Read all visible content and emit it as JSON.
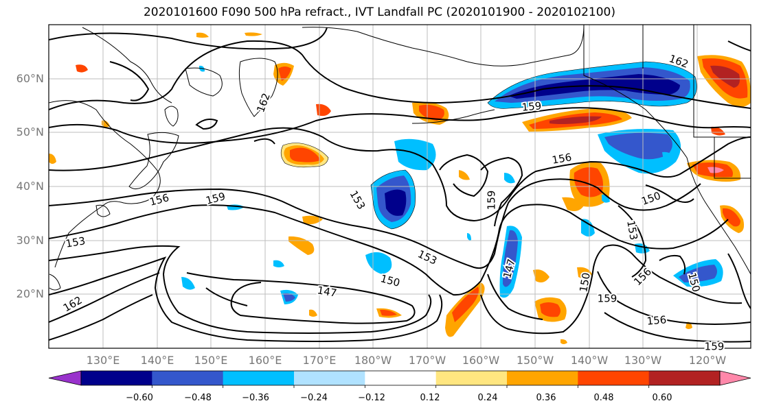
{
  "title": "2020101600 F090 500 hPa refract., IVT Landfall PC (2020101900 - 2020102100)",
  "lat_labels": [
    "60°N",
    "50°N",
    "40°N",
    "30°N",
    "20°N"
  ],
  "lon_labels": [
    "130°E",
    "140°E",
    "150°E",
    "160°E",
    "170°E",
    "180°W",
    "170°W",
    "160°W",
    "150°W",
    "140°W",
    "130°W",
    "120°W"
  ],
  "contour_labels": [
    "162",
    "159",
    "156",
    "159",
    "153",
    "159",
    "156",
    "153",
    "150",
    "153",
    "147",
    "150",
    "153",
    "162",
    "147",
    "150",
    "159",
    "156",
    "150",
    "162",
    "156",
    "159"
  ],
  "colorbar": {
    "ticks": [
      "−0.60",
      "−0.48",
      "−0.36",
      "−0.24",
      "−0.12",
      "0.12",
      "0.24",
      "0.36",
      "0.48",
      "0.60"
    ],
    "colors": [
      "#9932cc",
      "#00008b",
      "#3457cc",
      "#00bfff",
      "#b0e2ff",
      "#ffffff",
      "#ffe680",
      "#ffa500",
      "#ff4500",
      "#b22222",
      "#ff88aa"
    ]
  }
}
